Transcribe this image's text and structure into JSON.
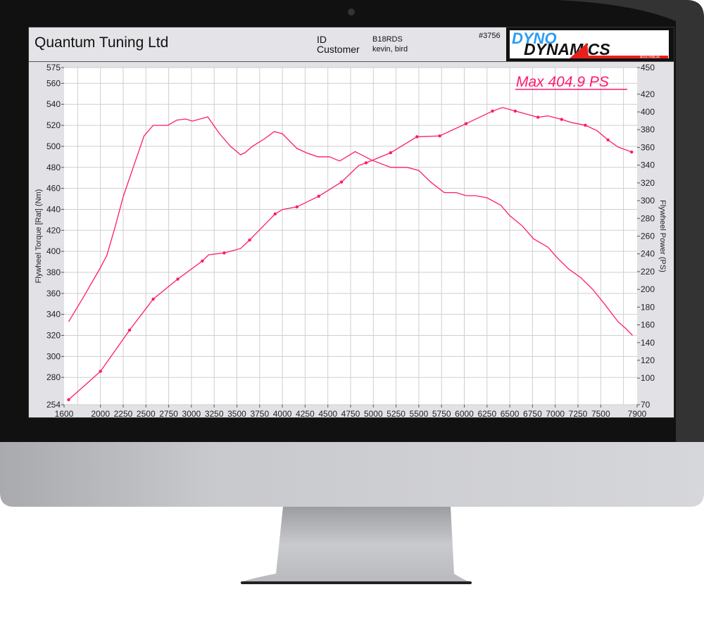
{
  "header": {
    "company": "Quantum Tuning Ltd",
    "id_label": "ID",
    "id_value": "B18RDS",
    "customer_label": "Customer",
    "customer_value": "kevin, bird",
    "run_number": "#3756",
    "logo_text_top": "DYNO",
    "logo_text_bottom": "DYNAMICS",
    "logo_text_sub": "AUSTRALIA"
  },
  "colors": {
    "curve": "#ff1a6e",
    "grid": "#cfcfcf",
    "logo_blue": "#2a9df4",
    "logo_red": "#e8201c"
  },
  "chart_data": {
    "type": "line",
    "annotation": "Max 404.9 PS",
    "xlabel": "",
    "xlim": [
      1600,
      7900
    ],
    "x_ticks": [
      1600,
      2000,
      2250,
      2500,
      2750,
      3000,
      3250,
      3500,
      3750,
      4000,
      4250,
      4500,
      4750,
      5000,
      5250,
      5500,
      5750,
      6000,
      6250,
      6500,
      6750,
      7000,
      7250,
      7500,
      7900
    ],
    "ylabel_left": "Flywheel Torque [Rat] (Nm)",
    "ylim_left": [
      254,
      575
    ],
    "y_ticks_left": [
      254,
      280,
      300,
      320,
      340,
      360,
      380,
      400,
      420,
      440,
      460,
      480,
      500,
      520,
      540,
      560,
      575
    ],
    "ylabel_right": "Flywheel Power (PS)",
    "ylim_right": [
      70,
      450
    ],
    "y_ticks_right": [
      70,
      100,
      120,
      140,
      160,
      180,
      200,
      220,
      240,
      260,
      280,
      300,
      320,
      340,
      360,
      380,
      400,
      420,
      450
    ],
    "grid": true,
    "series": [
      {
        "axis": "left",
        "markers": false,
        "points": [
          [
            1650,
            333
          ],
          [
            1810,
            356
          ],
          [
            1990,
            383
          ],
          [
            2070,
            396
          ],
          [
            2160,
            423
          ],
          [
            2250,
            452
          ],
          [
            2380,
            485
          ],
          [
            2480,
            510
          ],
          [
            2580,
            520
          ],
          [
            2740,
            520
          ],
          [
            2840,
            525
          ],
          [
            2940,
            526
          ],
          [
            3010,
            524
          ],
          [
            3180,
            528
          ],
          [
            3310,
            512
          ],
          [
            3430,
            500
          ],
          [
            3540,
            492
          ],
          [
            3590,
            494
          ],
          [
            3670,
            500
          ],
          [
            3800,
            507
          ],
          [
            3910,
            514
          ],
          [
            4000,
            512
          ],
          [
            4160,
            498
          ],
          [
            4260,
            494
          ],
          [
            4390,
            490
          ],
          [
            4520,
            490
          ],
          [
            4630,
            486
          ],
          [
            4800,
            495
          ],
          [
            4980,
            487
          ],
          [
            5190,
            480
          ],
          [
            5370,
            480
          ],
          [
            5500,
            477
          ],
          [
            5630,
            466
          ],
          [
            5780,
            456
          ],
          [
            5910,
            456
          ],
          [
            6020,
            453
          ],
          [
            6120,
            453
          ],
          [
            6250,
            451
          ],
          [
            6400,
            444
          ],
          [
            6500,
            434
          ],
          [
            6640,
            424
          ],
          [
            6760,
            412
          ],
          [
            6920,
            404
          ],
          [
            7020,
            394
          ],
          [
            7150,
            383
          ],
          [
            7280,
            375
          ],
          [
            7410,
            364
          ],
          [
            7540,
            350
          ],
          [
            7690,
            333
          ],
          [
            7770,
            327
          ],
          [
            7850,
            320
          ]
        ]
      },
      {
        "axis": "right",
        "markers": true,
        "points": [
          [
            1650,
            75.6
          ],
          [
            2000,
            107.6
          ],
          [
            2320,
            154
          ],
          [
            2580,
            189
          ],
          [
            2850,
            211.6
          ],
          [
            3120,
            232
          ],
          [
            3190,
            239
          ],
          [
            3360,
            241
          ],
          [
            3540,
            246
          ],
          [
            3640,
            255.6
          ],
          [
            3920,
            285
          ],
          [
            4000,
            290
          ],
          [
            4160,
            293
          ],
          [
            4400,
            305
          ],
          [
            4650,
            321
          ],
          [
            4840,
            339.6
          ],
          [
            4920,
            342.6
          ],
          [
            5190,
            354
          ],
          [
            5480,
            372
          ],
          [
            5730,
            373
          ],
          [
            6020,
            386.8
          ],
          [
            6310,
            401
          ],
          [
            6420,
            404.9
          ],
          [
            6560,
            401
          ],
          [
            6810,
            394
          ],
          [
            6920,
            395.6
          ],
          [
            7070,
            391.6
          ],
          [
            7180,
            388
          ],
          [
            7330,
            385
          ],
          [
            7460,
            378.8
          ],
          [
            7580,
            368.4
          ],
          [
            7690,
            360.4
          ],
          [
            7840,
            354.8
          ]
        ],
        "marker_x": [
          1650,
          2000,
          2320,
          2580,
          2850,
          3120,
          3360,
          3640,
          3920,
          4160,
          4400,
          4650,
          4920,
          5190,
          5480,
          5730,
          6020,
          6310,
          6560,
          6810,
          7070,
          7330,
          7580,
          7840
        ]
      }
    ]
  }
}
